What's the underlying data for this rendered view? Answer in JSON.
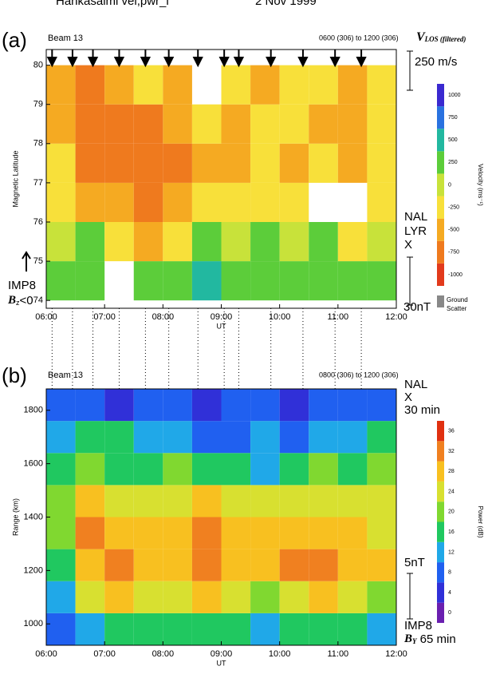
{
  "header": {
    "station": "Hankasalmi vel,pwr_l",
    "date": "2 Nov 1999"
  },
  "chart_data": [
    {
      "type": "heatmap",
      "panel": "(a)",
      "beam": "Beam 13",
      "time_range": "0600 (306) to 1200 (306)",
      "quantity": "V",
      "quantity_sub": "LOS (filtered)",
      "ylabel": "Magnetic Latitude",
      "xlabel": "UT",
      "xlim": [
        6,
        12
      ],
      "xticks": [
        {
          "value": 6,
          "label": "06:00"
        },
        {
          "value": 7,
          "label": "07:00"
        },
        {
          "value": 8,
          "label": "08:00"
        },
        {
          "value": 9,
          "label": "09:00"
        },
        {
          "value": 10,
          "label": "10:00"
        },
        {
          "value": 11,
          "label": "11:00"
        },
        {
          "value": 12,
          "label": "12:00"
        }
      ],
      "ylim": [
        73.8,
        80.4
      ],
      "yticks": [
        74,
        75,
        76,
        77,
        78,
        79,
        80
      ],
      "x_edges": [
        6,
        6.5,
        7,
        7.5,
        8,
        8.5,
        9,
        9.5,
        10,
        10.5,
        11,
        11.5,
        12
      ],
      "y_edges": [
        74,
        75,
        76,
        77,
        78,
        79,
        80
      ],
      "values": [
        [
          250,
          250,
          null,
          250,
          250,
          500,
          250,
          250,
          250,
          250,
          250,
          250
        ],
        [
          0,
          250,
          -250,
          -500,
          -250,
          250,
          0,
          250,
          0,
          250,
          -250,
          0
        ],
        [
          -250,
          -500,
          -500,
          -750,
          -500,
          -250,
          -250,
          -250,
          -250,
          null,
          null,
          -250
        ],
        [
          -250,
          -750,
          -750,
          -750,
          -750,
          -500,
          -500,
          -250,
          -500,
          -250,
          -500,
          -250
        ],
        [
          -500,
          -750,
          -750,
          -750,
          -500,
          -250,
          -500,
          -250,
          -250,
          -500,
          -500,
          -250
        ],
        [
          -500,
          -750,
          -500,
          -250,
          -500,
          null,
          -250,
          -500,
          -250,
          -250,
          -500,
          -250
        ]
      ],
      "arrows": [
        6.1,
        6.45,
        6.8,
        7.25,
        7.7,
        8.1,
        8.6,
        9.05,
        9.3,
        9.85,
        10.4,
        10.95,
        11.4
      ],
      "scale_label": "250 m/s",
      "traces": [
        "NAL",
        "LYR",
        "X"
      ],
      "imf_source": "IMP8",
      "imf_symbol": "B",
      "imf_sub": "z",
      "imf_cond": "<0",
      "imf_scale": "30nT",
      "ground_scatter": "Ground Scatter",
      "colorbar": {
        "label": "Velocity (ms⁻¹)",
        "ticks": [
          -1000,
          -750,
          -500,
          -250,
          0,
          250,
          500,
          750,
          1000
        ],
        "colors": [
          "#e23a1c",
          "#ef7a1e",
          "#f5aa22",
          "#f8e03a",
          "#c8e23a",
          "#5ccd3a",
          "#22b8a0",
          "#2a72e0",
          "#3a2ad0"
        ]
      }
    },
    {
      "type": "heatmap",
      "panel": "(b)",
      "beam": "Beam 13",
      "time_range": "0800 (306) to 1200 (306)",
      "ylabel": "Range (km)",
      "xlabel": "UT",
      "xlim": [
        6,
        12
      ],
      "xticks": [
        {
          "value": 6,
          "label": "06:00"
        },
        {
          "value": 7,
          "label": "07:00"
        },
        {
          "value": 8,
          "label": "08:00"
        },
        {
          "value": 9,
          "label": "09:00"
        },
        {
          "value": 10,
          "label": "10:00"
        },
        {
          "value": 11,
          "label": "11:00"
        },
        {
          "value": 12,
          "label": "12:00"
        }
      ],
      "ylim": [
        920,
        1880
      ],
      "yticks": [
        1000,
        1200,
        1400,
        1600,
        1800
      ],
      "x_edges": [
        6,
        6.5,
        7,
        7.5,
        8,
        8.5,
        9,
        9.5,
        10,
        10.5,
        11,
        11.5,
        12
      ],
      "y_edges": [
        920,
        1040,
        1160,
        1280,
        1400,
        1520,
        1640,
        1760,
        1880
      ],
      "values": [
        [
          8,
          12,
          16,
          16,
          16,
          16,
          16,
          12,
          16,
          16,
          16,
          12
        ],
        [
          12,
          24,
          28,
          24,
          24,
          28,
          24,
          20,
          24,
          28,
          24,
          20
        ],
        [
          16,
          28,
          32,
          28,
          28,
          32,
          28,
          28,
          32,
          32,
          28,
          28
        ],
        [
          20,
          32,
          28,
          28,
          28,
          32,
          28,
          28,
          28,
          28,
          28,
          24
        ],
        [
          20,
          28,
          24,
          24,
          24,
          28,
          24,
          24,
          24,
          24,
          24,
          24
        ],
        [
          16,
          20,
          16,
          16,
          20,
          16,
          16,
          12,
          16,
          20,
          16,
          20
        ],
        [
          12,
          16,
          16,
          12,
          12,
          8,
          8,
          12,
          8,
          12,
          12,
          16
        ],
        [
          8,
          8,
          4,
          8,
          8,
          4,
          8,
          8,
          4,
          8,
          8,
          8
        ]
      ],
      "traces": [
        "NAL",
        "X"
      ],
      "trace_window": "30 min",
      "imf_scale": "5nT",
      "imf_source": "IMP8",
      "imf_symbol": "B",
      "imf_sub": "Y",
      "imf_window": " 65 min",
      "colorbar": {
        "label": "Power (dB)",
        "ticks": [
          0,
          4,
          8,
          12,
          16,
          20,
          24,
          28,
          32,
          36
        ],
        "colors": [
          "#6a1fb0",
          "#3030d8",
          "#2060f0",
          "#20a8e8",
          "#20c860",
          "#80d830",
          "#d8e030",
          "#f8c020",
          "#f08020",
          "#e03010"
        ]
      }
    }
  ]
}
